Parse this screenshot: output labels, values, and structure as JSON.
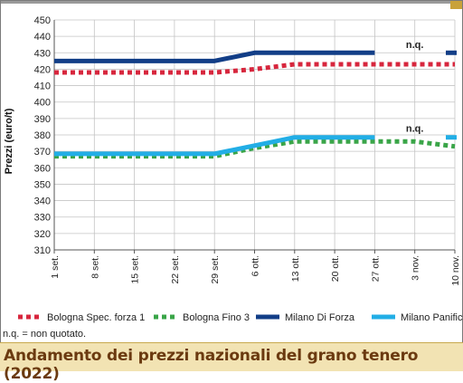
{
  "chart_data": {
    "type": "line",
    "title": "Andamento dei prezzi nazionali del grano tenero (2022)",
    "ylabel": "Prezzi (euro/t)",
    "xlabel": "",
    "ylim": [
      310,
      450
    ],
    "yticks": [
      "450",
      "440",
      "430",
      "420",
      "410",
      "400",
      "390",
      "380",
      "370",
      "360",
      "350",
      "340",
      "330",
      "320",
      "310"
    ],
    "categories": [
      "1 set.",
      "8 set.",
      "15 set.",
      "22 set.",
      "29 set.",
      "6 ott.",
      "13 ott.",
      "20 ott.",
      "27 ott.",
      "3 nov.",
      "10 nov."
    ],
    "grid": true,
    "legend_position": "bottom",
    "series": [
      {
        "name": "Bologna Spec. forza 1",
        "style": "dotted",
        "color": "#d7263d",
        "values": [
          418,
          418,
          418,
          418,
          418,
          420,
          423,
          423,
          423,
          423,
          423
        ]
      },
      {
        "name": "Bologna Fino 3",
        "style": "dotted",
        "color": "#3aa548",
        "values": [
          367,
          367,
          367,
          367,
          367,
          372,
          376,
          376,
          376,
          376,
          373
        ]
      },
      {
        "name": "Milano Di Forza",
        "style": "solid",
        "color": "#123e87",
        "values": [
          425,
          425,
          425,
          425,
          425,
          430,
          430,
          430,
          430,
          null,
          430
        ]
      },
      {
        "name": "Milano Panificabile",
        "style": "solid",
        "color": "#22aee6",
        "values": [
          368.5,
          368.5,
          368.5,
          368.5,
          368.5,
          373.5,
          378.5,
          378.5,
          378.5,
          null,
          378.5
        ]
      }
    ],
    "annotations": [
      {
        "text": "n.q.",
        "x": "3 nov.",
        "y": 433
      },
      {
        "text": "n.q.",
        "x": "3 nov.",
        "y": 382
      }
    ]
  },
  "footnote": "n.q. = non quotato."
}
